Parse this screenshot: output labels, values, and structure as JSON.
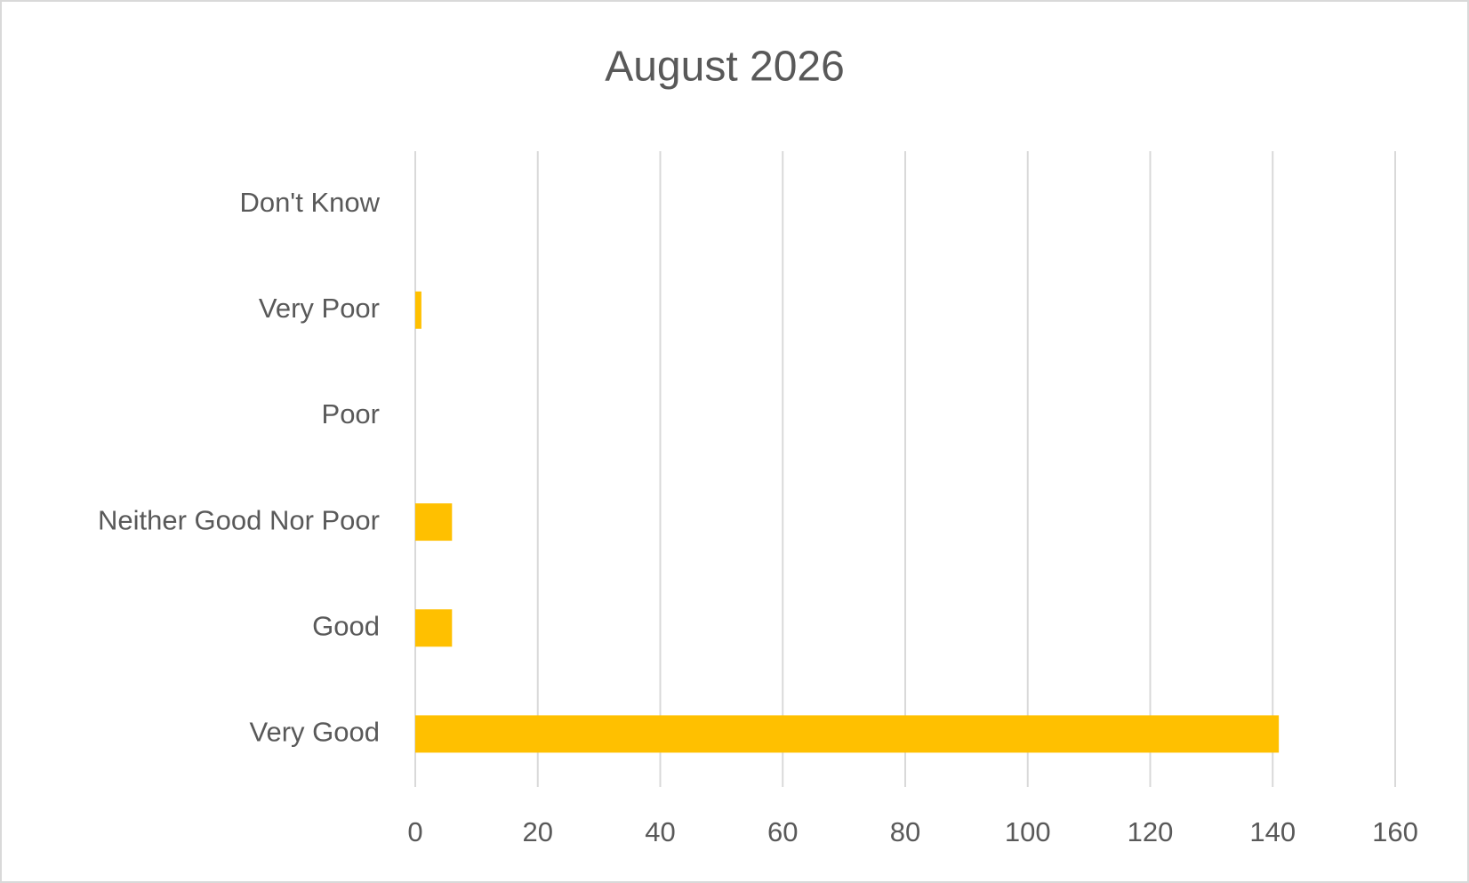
{
  "chart_data": {
    "type": "bar",
    "orientation": "horizontal",
    "title": "August 2026",
    "categories": [
      "Don't Know",
      "Very Poor",
      "Poor",
      "Neither Good Nor Poor",
      "Good",
      "Very Good"
    ],
    "values": [
      0,
      1,
      0,
      6,
      6,
      141
    ],
    "color": "#ffc000",
    "xlim": [
      0,
      160
    ],
    "xticks": [
      0,
      20,
      40,
      60,
      80,
      100,
      120,
      140,
      160
    ],
    "grid": true
  }
}
